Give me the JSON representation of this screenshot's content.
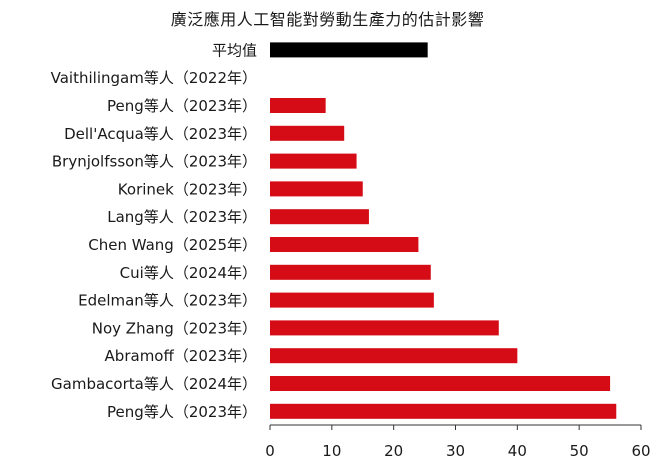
{
  "chart_data": {
    "type": "bar",
    "orientation": "horizontal",
    "title": "廣泛應用人工智能對勞動生產力的估計影響",
    "xlabel": "",
    "ylabel": "",
    "xlim": [
      0,
      60
    ],
    "x_ticks": [
      "0",
      "10",
      "20",
      "30",
      "40",
      "50",
      "60"
    ],
    "grid": false,
    "legend": "none",
    "categories": [
      "平均值",
      "Vaithilingam等人（2022年）",
      "Peng等人（2023年）",
      "Dell'Acqua等人（2023年）",
      "Brynjolfsson等人（2023年）",
      "Korinek（2023年）",
      "Lang等人（2023年）",
      "Chen Wang（2025年）",
      "Cui等人（2024年）",
      "Edelman等人（2023年）",
      "Noy Zhang（2023年）",
      "Abramoff（2023年）",
      "Gambacorta等人（2024年）",
      "Peng等人（2023年）"
    ],
    "values": [
      25.5,
      0,
      9,
      12,
      14,
      15,
      16,
      24,
      26,
      26.5,
      37,
      40,
      55,
      56
    ],
    "colors": [
      "#000000",
      "#d50b15",
      "#d50b15",
      "#d50b15",
      "#d50b15",
      "#d50b15",
      "#d50b15",
      "#d50b15",
      "#d50b15",
      "#d50b15",
      "#d50b15",
      "#d50b15",
      "#d50b15",
      "#d50b15"
    ]
  }
}
